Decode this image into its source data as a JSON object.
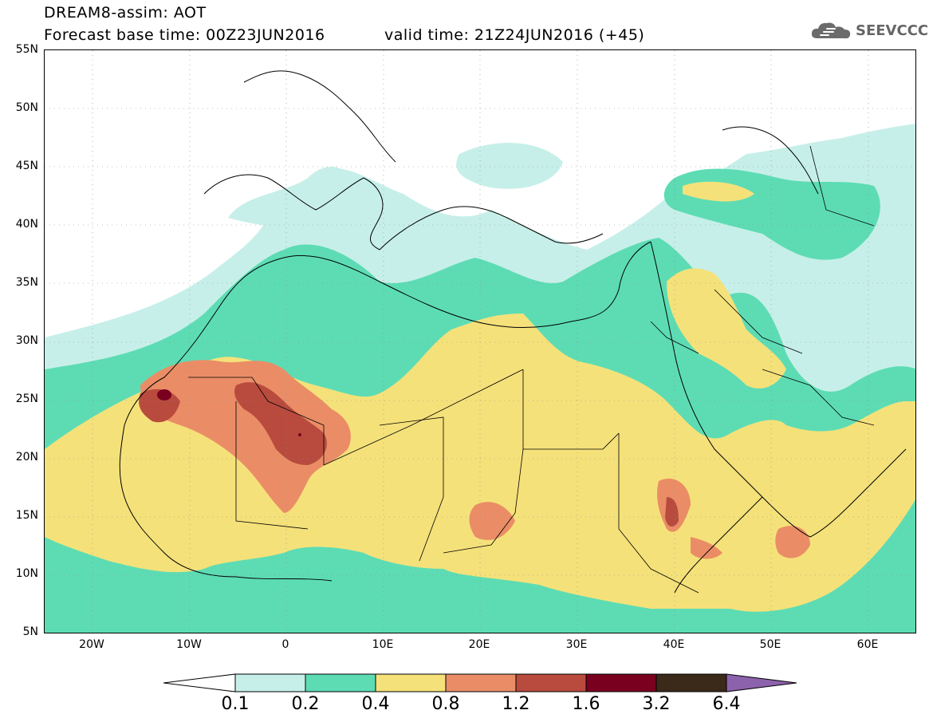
{
  "title": {
    "line1": "DREAM8-assim: AOT",
    "line2": "Forecast base time: 00Z23JUN2016",
    "valid": "valid time: 21Z24JUN2016 (+45)"
  },
  "logo": {
    "icon": "cloud-icon",
    "text": "SEEVCCC"
  },
  "axes": {
    "lat_labels": [
      "55N",
      "50N",
      "45N",
      "40N",
      "35N",
      "30N",
      "25N",
      "20N",
      "15N",
      "10N",
      "5N"
    ],
    "lon_labels": [
      "20W",
      "10W",
      "0",
      "10E",
      "20E",
      "30E",
      "40E",
      "50E",
      "60E"
    ]
  },
  "colorbar": {
    "labels": [
      "0.1",
      "0.2",
      "0.4",
      "0.8",
      "1.2",
      "1.6",
      "3.2",
      "6.4"
    ],
    "colors": [
      "#ffffff",
      "#c7efe9",
      "#5ddcb4",
      "#f5e17a",
      "#ea8d66",
      "#b84b3e",
      "#7a0020",
      "#3b2a1a",
      "#8d62ac"
    ]
  },
  "colors": {
    "light_teal": "#c7efe9",
    "teal": "#5ddcb4",
    "yellow": "#f5e17a",
    "salmon": "#ea8d66",
    "brick": "#b84b3e",
    "maroon": "#7a0020"
  }
}
